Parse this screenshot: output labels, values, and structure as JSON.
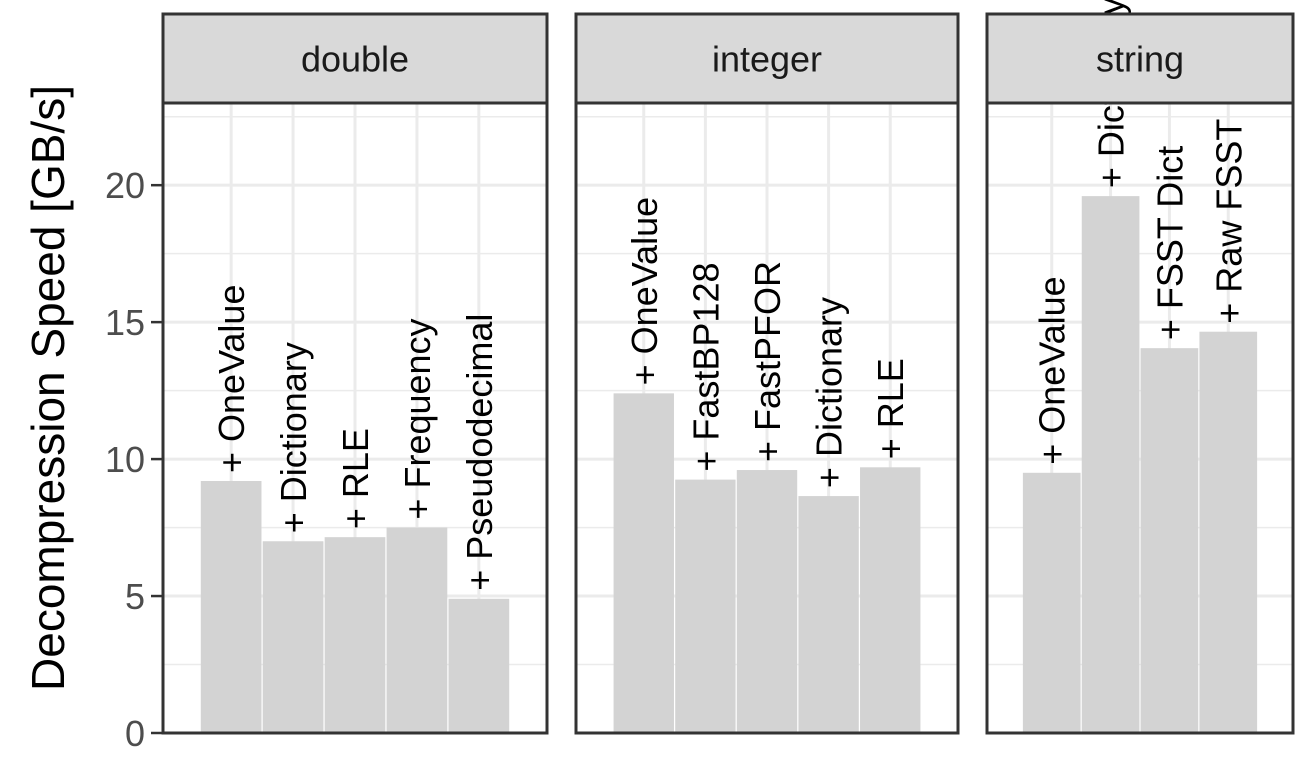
{
  "chart_data": {
    "type": "bar",
    "ylabel": "Decompression Speed [GB/s]",
    "ylim": [
      0,
      23
    ],
    "yticks": [
      0,
      5,
      10,
      15,
      20
    ],
    "grid": true,
    "legend": "none",
    "colors": {
      "bar": "#d3d3d3",
      "strip": "#d9d9d9",
      "grid": "#ebebeb",
      "panel_border": "#333333"
    },
    "panels": [
      {
        "name": "double",
        "categories": [
          "+ OneValue",
          "+ Dictionary",
          "+ RLE",
          "+ Frequency",
          "+ Pseudodecimal"
        ],
        "values": [
          9.2,
          7.0,
          7.15,
          7.5,
          4.9
        ]
      },
      {
        "name": "integer",
        "categories": [
          "+ OneValue",
          "+ FastBP128",
          "+ FastPFOR",
          "+ Dictionary",
          "+ RLE"
        ],
        "values": [
          12.4,
          9.25,
          9.6,
          8.65,
          9.7
        ]
      },
      {
        "name": "string",
        "categories": [
          "+ OneValue",
          "+ Dictionary",
          "+ FSST Dict",
          "+ Raw FSST"
        ],
        "values": [
          9.5,
          19.6,
          14.05,
          14.65
        ]
      }
    ]
  }
}
